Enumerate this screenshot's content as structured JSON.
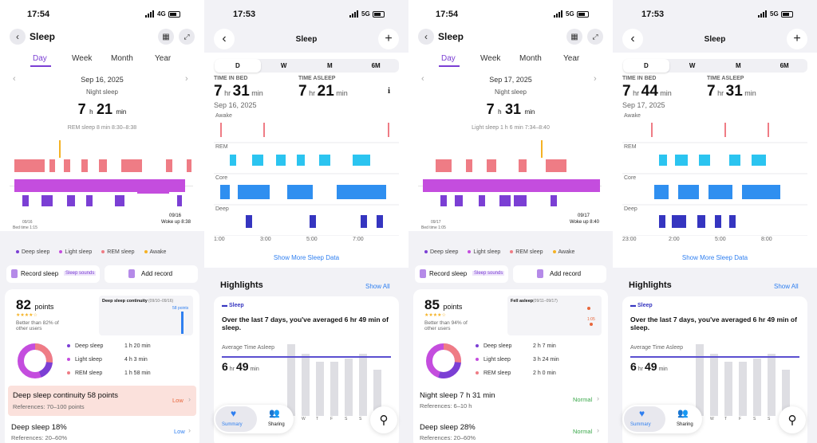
{
  "p1": {
    "time": "17:54",
    "network": "4G",
    "title": "Sleep",
    "tabs": [
      "Day",
      "Week",
      "Month",
      "Year"
    ],
    "date": "Sep 16, 2025",
    "sleep_label": "Night sleep",
    "hr": "7",
    "hr_unit": "h",
    "min": "21",
    "min_unit": "min",
    "detail": "REM sleep 8 min 8:30–8:38",
    "bed_date": "09/16",
    "bed_time": "Bed time 1:15",
    "wake_date": "09/16",
    "wake_time": "Woke up 8:38",
    "legend": [
      "Deep sleep",
      "Light sleep",
      "REM sleep",
      "Awake"
    ],
    "record": "Record sleep",
    "sounds": "Sleep sounds",
    "add": "Add record",
    "score": "82",
    "points": "points",
    "stars": "★★★★☆",
    "better": "Better than 82% of other users",
    "mini_title": "Deep sleep continuity",
    "mini_range": "(09/10–09/16)",
    "mini_val": "58 points",
    "stats": [
      {
        "label": "Deep sleep",
        "value": "1 h 20 min"
      },
      {
        "label": "Light sleep",
        "value": "4 h 3 min"
      },
      {
        "label": "REM sleep",
        "value": "1 h 58 min"
      }
    ],
    "row1_title": "Deep sleep continuity 58 points",
    "row1_ref": "References: 70–100 points",
    "row1_status": "Low",
    "row2_title": "Deep sleep 18%",
    "row2_ref": "References: 20–60%",
    "row2_status": "Low"
  },
  "p2": {
    "time": "17:53",
    "network": "5G",
    "title": "Sleep",
    "tabs": [
      "D",
      "W",
      "M",
      "6M"
    ],
    "bed_label": "TIME IN BED",
    "asleep_label": "TIME ASLEEP",
    "bed_hr": "7",
    "bed_min": "31",
    "asleep_hr": "7",
    "asleep_min": "21",
    "hr_unit": "hr",
    "min_unit": "min",
    "date": "Sep 16, 2025",
    "stages": [
      "Awake",
      "REM",
      "Core",
      "Deep"
    ],
    "ticks": [
      "1:00",
      "3:00",
      "5:00",
      "7:00"
    ],
    "more": "Show More Sleep Data",
    "highlights": "Highlights",
    "show_all": "Show All",
    "card_tag": "Sleep",
    "card_text": "Over the last 7 days, you've averaged 6 hr 49 min of sleep.",
    "avg_label": "Average Time Asleep",
    "avg_hr": "6",
    "avg_min": "49",
    "days": [
      "W",
      "T",
      "F",
      "S",
      "S"
    ],
    "nav_summary": "Summary",
    "nav_sharing": "Sharing"
  },
  "p3": {
    "time": "17:54",
    "network": "5G",
    "title": "Sleep",
    "tabs": [
      "Day",
      "Week",
      "Month",
      "Year"
    ],
    "date": "Sep 17, 2025",
    "sleep_label": "Night sleep",
    "hr": "7",
    "hr_unit": "h",
    "min": "31",
    "min_unit": "min",
    "detail": "Light sleep 1 h 6 min 7:34–8:40",
    "bed_date": "09/17",
    "bed_time": "Bed time 1:05",
    "wake_date": "09/17",
    "wake_time": "Woke up 8:40",
    "legend": [
      "Deep sleep",
      "Light sleep",
      "REM sleep",
      "Awake"
    ],
    "record": "Record sleep",
    "sounds": "Sleep sounds",
    "add": "Add record",
    "score": "85",
    "points": "points",
    "stars": "★★★★☆",
    "better": "Better than 94% of other users",
    "mini_title": "Fell asleep",
    "mini_range": "(09/11–09/17)",
    "mini_val": "1:05",
    "stats": [
      {
        "label": "Deep sleep",
        "value": "2 h 7 min"
      },
      {
        "label": "Light sleep",
        "value": "3 h 24 min"
      },
      {
        "label": "REM sleep",
        "value": "2 h 0 min"
      }
    ],
    "row1_title": "Night sleep 7 h 31 min",
    "row1_ref": "References: 6–10 h",
    "row1_status": "Normal",
    "row2_title": "Deep sleep 28%",
    "row2_ref": "References: 20–60%",
    "row2_status": "Normal"
  },
  "p4": {
    "time": "17:53",
    "network": "5G",
    "title": "Sleep",
    "tabs": [
      "D",
      "W",
      "M",
      "6M"
    ],
    "bed_label": "TIME IN BED",
    "asleep_label": "TIME ASLEEP",
    "bed_hr": "7",
    "bed_min": "44",
    "asleep_hr": "7",
    "asleep_min": "31",
    "hr_unit": "hr",
    "min_unit": "min",
    "date": "Sep 17, 2025",
    "stages": [
      "Awake",
      "REM",
      "Core",
      "Deep"
    ],
    "ticks": [
      "23:00",
      "2:00",
      "5:00",
      "8:00"
    ],
    "more": "Show More Sleep Data",
    "highlights": "Highlights",
    "show_all": "Show All",
    "card_tag": "Sleep",
    "card_text": "Over the last 7 days, you've averaged 6 hr 49 min of sleep.",
    "avg_label": "Average Time Asleep",
    "avg_hr": "6",
    "avg_min": "49",
    "days": [
      "W",
      "T",
      "F",
      "S",
      "S"
    ],
    "nav_summary": "Summary",
    "nav_sharing": "Sharing"
  },
  "colors": {
    "deep": "#7b3fd4",
    "light": "#c44dde",
    "rem": "#ef7c85",
    "awake": "#f5b224",
    "apple_rem": "#2bc4f0",
    "apple_core": "#2f8ff0",
    "apple_deep": "#3535c0",
    "accent": "#7b3fd4",
    "blue": "#2f7ff0"
  }
}
